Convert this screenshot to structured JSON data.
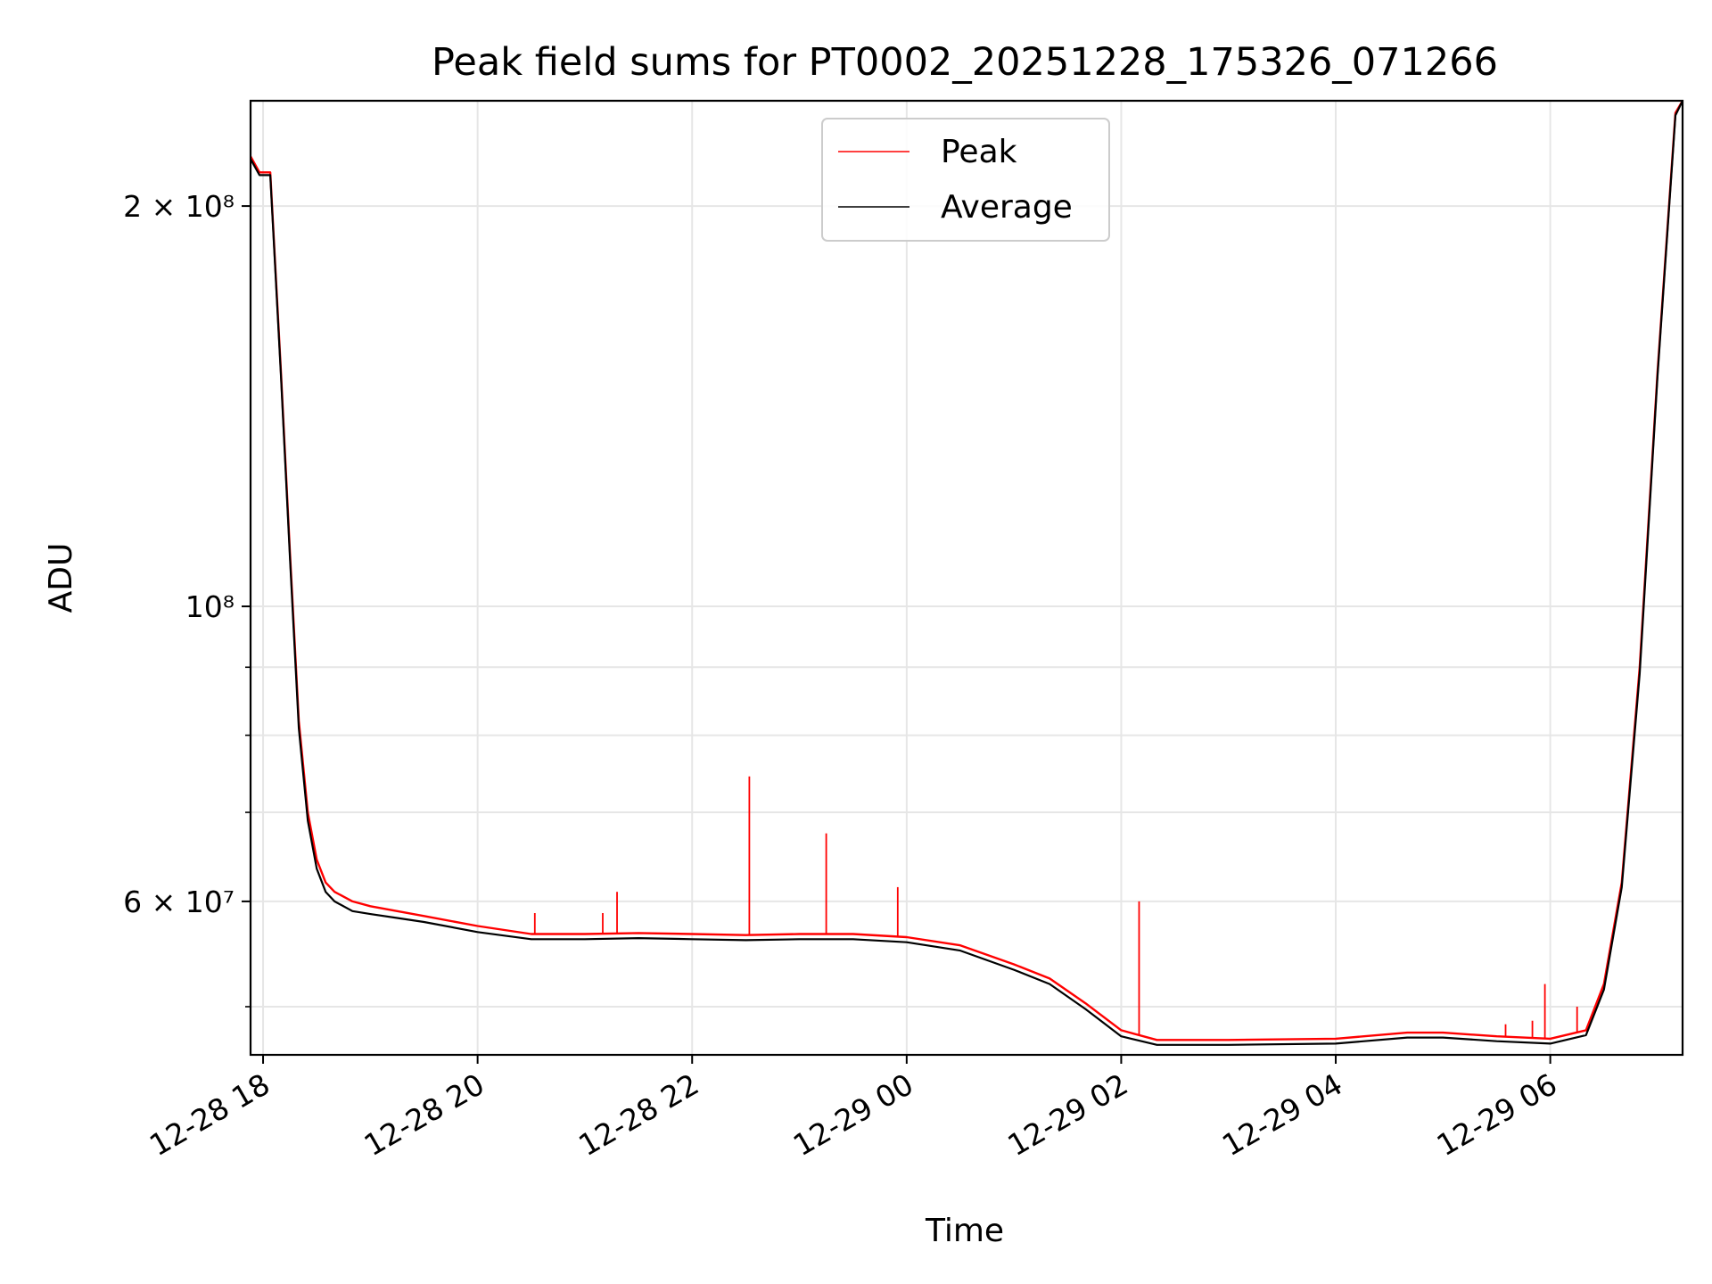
{
  "chart_data": {
    "type": "line",
    "title": "Peak field sums for PT0002_20251228_175326_071266",
    "xlabel": "Time",
    "ylabel": "ADU",
    "yscale": "log",
    "ylim": [
      46000000,
      240000000
    ],
    "xlim": [
      "2025-12-28 17:53",
      "2025-12-29 07:14"
    ],
    "grid": true,
    "legend_position": "upper center",
    "xticks": [
      {
        "value": "2025-12-28 18:00",
        "label": "12-28 18"
      },
      {
        "value": "2025-12-28 20:00",
        "label": "12-28 20"
      },
      {
        "value": "2025-12-28 22:00",
        "label": "12-28 22"
      },
      {
        "value": "2025-12-29 00:00",
        "label": "12-29 00"
      },
      {
        "value": "2025-12-29 02:00",
        "label": "12-29 02"
      },
      {
        "value": "2025-12-29 04:00",
        "label": "12-29 04"
      },
      {
        "value": "2025-12-29 06:00",
        "label": "12-29 06"
      }
    ],
    "yticks_major": [
      {
        "value": 60000000,
        "label": "6 × 10⁷"
      },
      {
        "value": 100000000,
        "label": "10⁸"
      },
      {
        "value": 200000000,
        "label": "2 × 10⁸"
      }
    ],
    "yticks_minor": [
      50000000,
      70000000,
      80000000,
      90000000
    ],
    "series": [
      {
        "name": "Peak",
        "color": "#ff0000",
        "x": [
          "2025-12-28 17:53",
          "2025-12-28 17:58",
          "2025-12-28 18:04",
          "2025-12-28 18:10",
          "2025-12-28 18:15",
          "2025-12-28 18:20",
          "2025-12-28 18:25",
          "2025-12-28 18:30",
          "2025-12-28 18:35",
          "2025-12-28 18:40",
          "2025-12-28 18:50",
          "2025-12-28 19:00",
          "2025-12-28 19:15",
          "2025-12-28 19:30",
          "2025-12-28 20:00",
          "2025-12-28 20:30",
          "2025-12-28 21:00",
          "2025-12-28 21:30",
          "2025-12-28 22:00",
          "2025-12-28 22:30",
          "2025-12-28 23:00",
          "2025-12-28 23:30",
          "2025-12-29 00:00",
          "2025-12-29 00:30",
          "2025-12-29 01:00",
          "2025-12-29 01:20",
          "2025-12-29 01:40",
          "2025-12-29 02:00",
          "2025-12-29 02:20",
          "2025-12-29 03:00",
          "2025-12-29 04:00",
          "2025-12-29 04:40",
          "2025-12-29 05:00",
          "2025-12-29 05:30",
          "2025-12-29 06:00",
          "2025-12-29 06:20",
          "2025-12-29 06:30",
          "2025-12-29 06:40",
          "2025-12-29 06:50",
          "2025-12-29 07:00",
          "2025-12-29 07:10",
          "2025-12-29 07:14"
        ],
        "y": [
          218000000,
          212000000,
          212000000,
          150000000,
          110000000,
          82000000,
          70000000,
          64500000,
          62000000,
          61000000,
          60000000,
          59500000,
          59000000,
          58500000,
          57500000,
          56700000,
          56700000,
          56800000,
          56700000,
          56600000,
          56700000,
          56700000,
          56400000,
          55600000,
          53800000,
          52500000,
          50300000,
          48000000,
          47200000,
          47200000,
          47300000,
          47800000,
          47800000,
          47500000,
          47300000,
          48000000,
          52000000,
          62000000,
          90000000,
          150000000,
          235000000,
          240000000
        ]
      },
      {
        "name": "Average",
        "color": "#000000",
        "x": [
          "2025-12-28 17:53",
          "2025-12-28 17:58",
          "2025-12-28 18:04",
          "2025-12-28 18:10",
          "2025-12-28 18:15",
          "2025-12-28 18:20",
          "2025-12-28 18:25",
          "2025-12-28 18:30",
          "2025-12-28 18:35",
          "2025-12-28 18:40",
          "2025-12-28 18:50",
          "2025-12-28 19:00",
          "2025-12-28 19:15",
          "2025-12-28 19:30",
          "2025-12-28 20:00",
          "2025-12-28 20:30",
          "2025-12-28 21:00",
          "2025-12-28 21:30",
          "2025-12-28 22:00",
          "2025-12-28 22:30",
          "2025-12-28 23:00",
          "2025-12-28 23:30",
          "2025-12-29 00:00",
          "2025-12-29 00:30",
          "2025-12-29 01:00",
          "2025-12-29 01:20",
          "2025-12-29 01:40",
          "2025-12-29 02:00",
          "2025-12-29 02:20",
          "2025-12-29 03:00",
          "2025-12-29 04:00",
          "2025-12-29 04:40",
          "2025-12-29 05:00",
          "2025-12-29 05:30",
          "2025-12-29 06:00",
          "2025-12-29 06:20",
          "2025-12-29 06:30",
          "2025-12-29 06:40",
          "2025-12-29 06:50",
          "2025-12-29 07:00",
          "2025-12-29 07:10",
          "2025-12-29 07:14"
        ],
        "y": [
          217000000,
          211000000,
          211000000,
          149000000,
          109000000,
          81000000,
          69000000,
          63500000,
          61000000,
          60000000,
          59000000,
          58700000,
          58300000,
          57900000,
          56900000,
          56200000,
          56200000,
          56300000,
          56200000,
          56100000,
          56200000,
          56200000,
          55900000,
          55100000,
          53300000,
          52000000,
          49800000,
          47500000,
          46800000,
          46800000,
          46900000,
          47400000,
          47400000,
          47100000,
          46900000,
          47600000,
          51500000,
          61500000,
          89000000,
          149000000,
          234000000,
          240000000
        ]
      }
    ],
    "spikes": [
      {
        "x": "2025-12-28 20:32",
        "y": 58800000
      },
      {
        "x": "2025-12-28 21:10",
        "y": 58800000
      },
      {
        "x": "2025-12-28 21:18",
        "y": 61000000
      },
      {
        "x": "2025-12-28 22:32",
        "y": 74500000
      },
      {
        "x": "2025-12-28 23:15",
        "y": 67500000
      },
      {
        "x": "2025-12-28 23:55",
        "y": 61500000
      },
      {
        "x": "2025-12-29 02:10",
        "y": 60000000
      },
      {
        "x": "2025-12-29 05:35",
        "y": 48500000
      },
      {
        "x": "2025-12-29 05:50",
        "y": 48800000
      },
      {
        "x": "2025-12-29 05:57",
        "y": 52000000
      },
      {
        "x": "2025-12-29 06:15",
        "y": 50000000
      }
    ]
  }
}
